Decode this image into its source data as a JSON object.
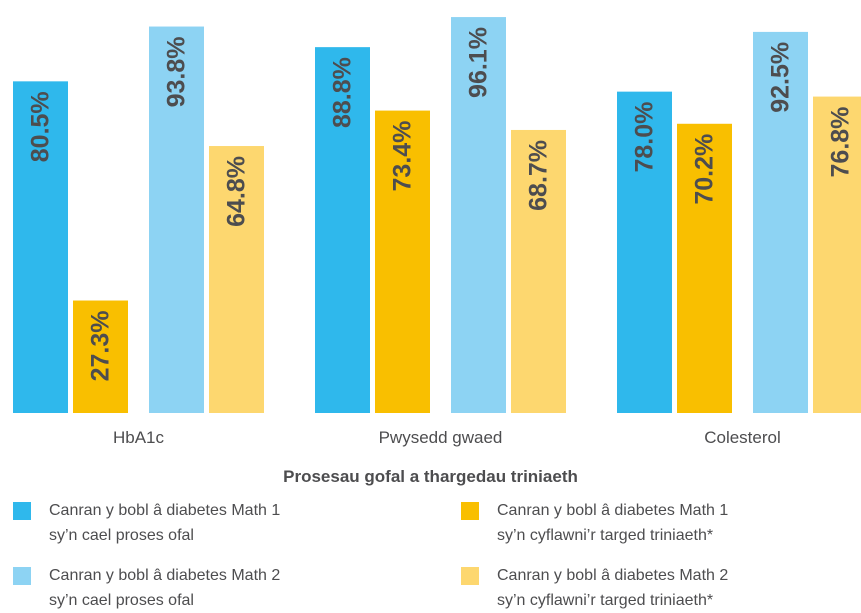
{
  "chart_data": {
    "type": "bar",
    "categories": [
      "HbA1c",
      "Pwysedd gwaed",
      "Colesterol"
    ],
    "series": [
      {
        "name": "Canran y bobl â diabetes Math 1 sy’n cael proses ofal",
        "color": "#2fb8ec",
        "values": [
          80.5,
          88.8,
          78.0
        ]
      },
      {
        "name": "Canran y bobl â diabetes Math 1 sy’n cyflawni’r targed triniaeth*",
        "color": "#f9bf00",
        "values": [
          27.3,
          73.4,
          70.2
        ]
      },
      {
        "name": "Canran y bobl â diabetes Math 2 sy’n cael proses ofal",
        "color": "#8dd3f3",
        "values": [
          93.8,
          96.1,
          92.5
        ]
      },
      {
        "name": "Canran y bobl â diabetes Math 2 sy’n cyflawni’r targed triniaeth*",
        "color": "#fdd76f",
        "values": [
          64.8,
          68.7,
          76.8
        ]
      }
    ],
    "value_labels": [
      [
        "80.5%",
        "88.8%",
        "78.0%"
      ],
      [
        "27.3%",
        "73.4%",
        "70.2%"
      ],
      [
        "93.8%",
        "96.1%",
        "92.5%"
      ],
      [
        "64.8%",
        "68.7%",
        "76.8%"
      ]
    ],
    "ylim": [
      0,
      100
    ],
    "xlabel": "Prosesau gofal a thargedau triniaeth",
    "ylabel": "",
    "grid": false,
    "legend_position": "bottom"
  },
  "legend": [
    {
      "line1": "Canran y bobl â diabetes Math 1",
      "line2": "sy’n cael proses ofal",
      "color": "#2fb8ec"
    },
    {
      "line1": "Canran y bobl â diabetes Math 1",
      "line2": "sy’n cyflawni’r targed triniaeth*",
      "color": "#f9bf00"
    },
    {
      "line1": "Canran y bobl â diabetes Math 2",
      "line2": "sy’n cael proses ofal",
      "color": "#8dd3f3"
    },
    {
      "line1": "Canran y bobl â diabetes Math 2",
      "line2": "sy’n cyflawni’r targed triniaeth*",
      "color": "#fdd76f"
    }
  ]
}
